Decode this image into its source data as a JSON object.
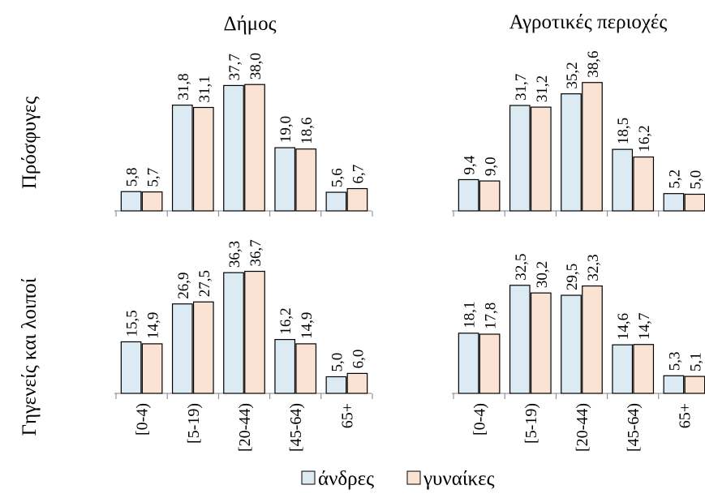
{
  "figure": {
    "col_titles": [
      "Δήμος",
      "Αγροτικές περιοχές"
    ],
    "row_titles": [
      "Πρόσφυγες",
      "Γηγενείς και λοιποί"
    ]
  },
  "colors": {
    "male": "#dcebf3",
    "female": "#fbe3d3",
    "stroke": "#000000",
    "axis": "#7f7f7f"
  },
  "chart_data": [
    {
      "type": "bar",
      "panel": "Δήμος / Πρόσφυγες",
      "categories": [
        "[0-4)",
        "[5-19)",
        "[20-44)",
        "[45-64)",
        "65+"
      ],
      "series": [
        {
          "name": "άνδρες",
          "values": [
            5.8,
            31.8,
            37.7,
            19.0,
            5.6
          ],
          "labels": [
            "5,8",
            "31,8",
            "37,7",
            "19,0",
            "5,6"
          ]
        },
        {
          "name": "γυναίκες",
          "values": [
            5.7,
            31.1,
            38.0,
            18.6,
            6.7
          ],
          "labels": [
            "5,7",
            "31,1",
            "38,0",
            "18,6",
            "6,7"
          ]
        }
      ],
      "ylim": [
        0,
        40
      ]
    },
    {
      "type": "bar",
      "panel": "Αγροτικές περιοχές / Πρόσφυγες",
      "categories": [
        "[0-4)",
        "[5-19)",
        "[20-44)",
        "[45-64)",
        "65+"
      ],
      "series": [
        {
          "name": "άνδρες",
          "values": [
            9.4,
            31.7,
            35.2,
            18.5,
            5.2
          ],
          "labels": [
            "9,4",
            "31,7",
            "35,2",
            "18,5",
            "5,2"
          ]
        },
        {
          "name": "γυναίκες",
          "values": [
            9.0,
            31.2,
            38.6,
            16.2,
            5.0
          ],
          "labels": [
            "9,0",
            "31,2",
            "38,6",
            "16,2",
            "5,0"
          ]
        }
      ],
      "ylim": [
        0,
        40
      ]
    },
    {
      "type": "bar",
      "panel": "Δήμος / Γηγενείς και λοιποί",
      "categories": [
        "[0-4)",
        "[5-19)",
        "[20-44)",
        "[45-64)",
        "65+"
      ],
      "series": [
        {
          "name": "άνδρες",
          "values": [
            15.5,
            26.9,
            36.3,
            16.2,
            5.0
          ],
          "labels": [
            "15,5",
            "26,9",
            "36,3",
            "16,2",
            "5,0"
          ]
        },
        {
          "name": "γυναίκες",
          "values": [
            14.9,
            27.5,
            36.7,
            14.9,
            6.0
          ],
          "labels": [
            "14,9",
            "27,5",
            "36,7",
            "14,9",
            "6,0"
          ]
        }
      ],
      "ylim": [
        0,
        40
      ]
    },
    {
      "type": "bar",
      "panel": "Αγροτικές περιοχές / Γηγενείς και λοιποί",
      "categories": [
        "[0-4)",
        "[5-19)",
        "[20-44)",
        "[45-64)",
        "65+"
      ],
      "series": [
        {
          "name": "άνδρες",
          "values": [
            18.1,
            32.5,
            29.5,
            14.6,
            5.3
          ],
          "labels": [
            "18,1",
            "32,5",
            "29,5",
            "14,6",
            "5,3"
          ]
        },
        {
          "name": "γυναίκες",
          "values": [
            17.8,
            30.2,
            32.3,
            14.7,
            5.1
          ],
          "labels": [
            "17,8",
            "30,2",
            "32,3",
            "14,7",
            "5,1"
          ]
        }
      ],
      "ylim": [
        0,
        40
      ]
    }
  ],
  "legend": {
    "position": "bottom",
    "entries": [
      {
        "label": "άνδρες",
        "color": "#dcebf3"
      },
      {
        "label": "γυναίκες",
        "color": "#fbe3d3"
      }
    ]
  }
}
